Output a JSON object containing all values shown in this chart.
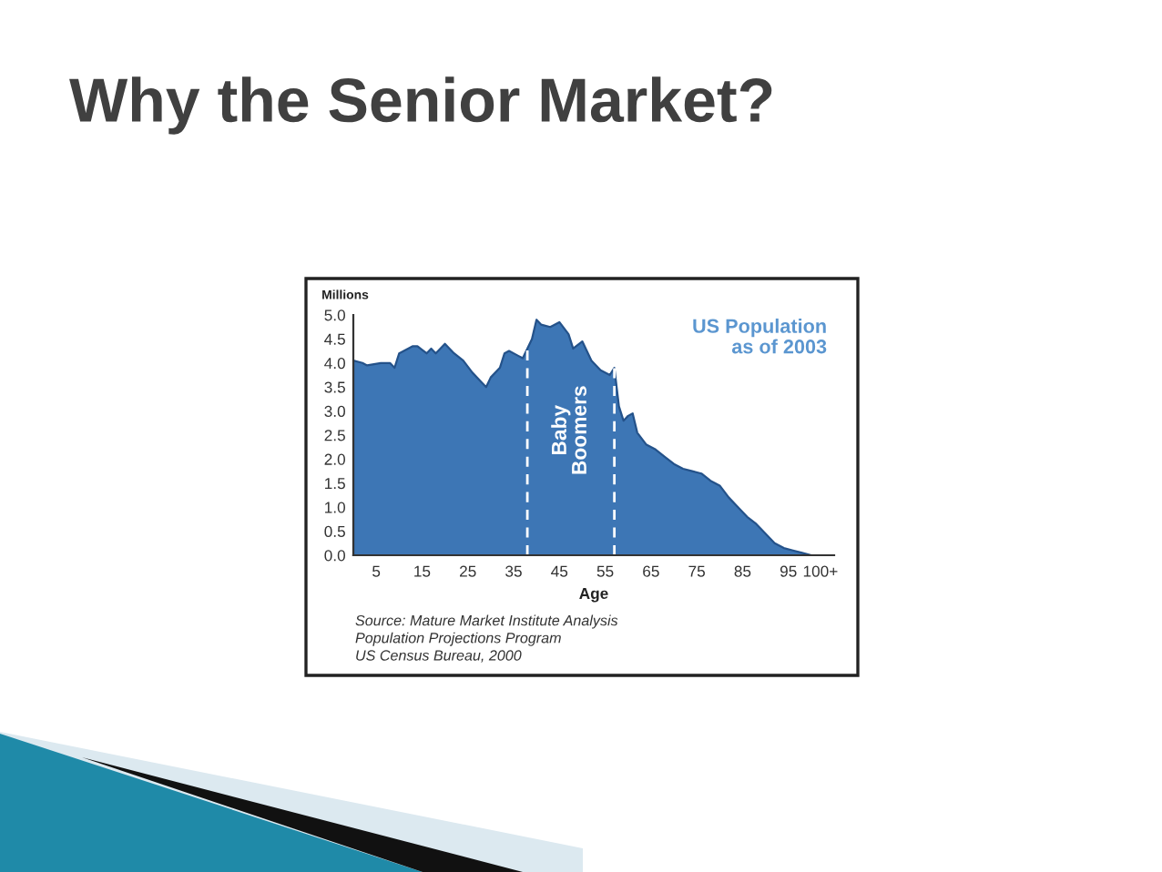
{
  "chart_data": {
    "type": "area",
    "title": "Why the Senior Market?",
    "subtitle": "US Population\nas of 2003",
    "xlabel": "Age",
    "ylabel": "Millions",
    "x": [
      0,
      2,
      3,
      6,
      8,
      9,
      10,
      13,
      14,
      16,
      17,
      18,
      20,
      22,
      24,
      26,
      28,
      29,
      30,
      32,
      33,
      34,
      36,
      37,
      38,
      39,
      40,
      41,
      43,
      45,
      47,
      48,
      50,
      52,
      54,
      56,
      57,
      58,
      59,
      60,
      61,
      62,
      64,
      66,
      68,
      70,
      72,
      74,
      76,
      78,
      80,
      82,
      84,
      86,
      88,
      90,
      92,
      94,
      96,
      98,
      100,
      105
    ],
    "values": [
      4.05,
      4.0,
      3.95,
      4.0,
      4.0,
      3.9,
      4.2,
      4.35,
      4.35,
      4.2,
      4.3,
      4.2,
      4.4,
      4.2,
      4.05,
      3.8,
      3.6,
      3.5,
      3.7,
      3.9,
      4.2,
      4.25,
      4.15,
      4.1,
      4.3,
      4.5,
      4.9,
      4.8,
      4.75,
      4.85,
      4.6,
      4.3,
      4.45,
      4.05,
      3.85,
      3.75,
      3.9,
      3.1,
      2.8,
      2.9,
      2.95,
      2.55,
      2.3,
      2.2,
      2.05,
      1.9,
      1.8,
      1.75,
      1.7,
      1.55,
      1.45,
      1.2,
      1.0,
      0.8,
      0.65,
      0.45,
      0.25,
      0.15,
      0.1,
      0.05,
      0,
      0
    ],
    "color": "#3d76b5",
    "xlim": [
      0,
      105
    ],
    "ylim": [
      0,
      5
    ],
    "xticks": [
      5,
      15,
      25,
      35,
      45,
      55,
      65,
      75,
      85,
      95,
      {
        "value": 102,
        "label": "100+"
      }
    ],
    "yticks": [
      {
        "value": 0,
        "label": "0.0"
      },
      {
        "value": 0.5,
        "label": "0.5"
      },
      {
        "value": 1,
        "label": "1.0"
      },
      {
        "value": 1.5,
        "label": "1.5"
      },
      {
        "value": 2,
        "label": "2.0"
      },
      {
        "value": 2.5,
        "label": "2.5"
      },
      {
        "value": 3,
        "label": "3.0"
      },
      {
        "value": 3.5,
        "label": "3.5"
      },
      {
        "value": 4,
        "label": "4.0"
      },
      {
        "value": 4.5,
        "label": "4.5"
      },
      {
        "value": 5,
        "label": "5.0"
      }
    ],
    "ref_lines": [
      {
        "axis": "x",
        "value": 38,
        "color": "#ffffff",
        "line_style": "dashed"
      },
      {
        "axis": "x",
        "value": 57,
        "color": "#ffffff",
        "line_style": "dashed"
      }
    ],
    "annotations": [
      "Baby\nBoomers",
      "Source: Mature Market Institute Analysis",
      "Population Projections Program",
      "US Census Bureau, 2000"
    ]
  }
}
